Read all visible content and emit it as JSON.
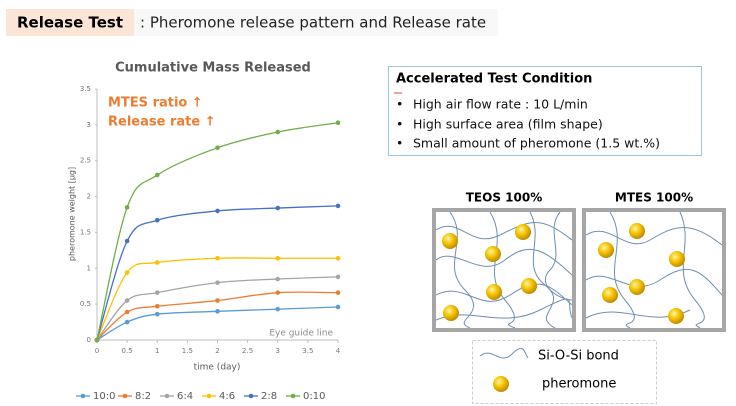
{
  "header": {
    "title": "Release Test",
    "subtitle": ": Pheromone release pattern and Release rate"
  },
  "chart_data": {
    "type": "line",
    "title": "Cumulative Mass Released",
    "x_label": "time (day)",
    "y_label": "pheromone weight [μg]",
    "annotations": [
      "MTES ratio ↑",
      "Release rate ↑",
      "Eye guide line"
    ],
    "x": [
      0,
      0.5,
      1,
      2,
      3,
      4
    ],
    "xlim": [
      0,
      4
    ],
    "xticks": [
      0,
      0.5,
      1,
      1.5,
      2,
      2.5,
      3,
      3.5,
      4
    ],
    "ylim": [
      0,
      3.5
    ],
    "yticks": [
      0,
      0.5,
      1,
      1.5,
      2,
      2.5,
      3,
      3.5
    ],
    "grid": false,
    "legend": "bottom",
    "series": [
      {
        "name": "10:0",
        "color": "#5b9bd5",
        "values": [
          0,
          0.25,
          0.36,
          0.4,
          0.43,
          0.46
        ]
      },
      {
        "name": "8:2",
        "color": "#ed7d31",
        "values": [
          0,
          0.39,
          0.47,
          0.55,
          0.66,
          0.66
        ]
      },
      {
        "name": "6:4",
        "color": "#a5a5a5",
        "values": [
          0,
          0.55,
          0.66,
          0.8,
          0.85,
          0.88
        ]
      },
      {
        "name": "4:6",
        "color": "#ffc000",
        "values": [
          0,
          0.94,
          1.08,
          1.14,
          1.14,
          1.14
        ]
      },
      {
        "name": "2:8",
        "color": "#4472c4",
        "values": [
          0,
          1.38,
          1.67,
          1.8,
          1.84,
          1.87
        ]
      },
      {
        "name": "0:10",
        "color": "#70ad47",
        "values": [
          0,
          1.85,
          2.3,
          2.68,
          2.9,
          3.03
        ]
      }
    ]
  },
  "conditions": {
    "title": "Accelerated Test Condition",
    "items": [
      "High air flow rate : 10 L/min",
      "High surface area (film shape)",
      "Small amount of pheromone (1.5 wt.%)"
    ]
  },
  "diagrams": [
    {
      "label": "TEOS 100%"
    },
    {
      "label": "MTES 100%"
    }
  ],
  "diagram_legend": [
    "Si-O-Si bond",
    "pheromone"
  ]
}
